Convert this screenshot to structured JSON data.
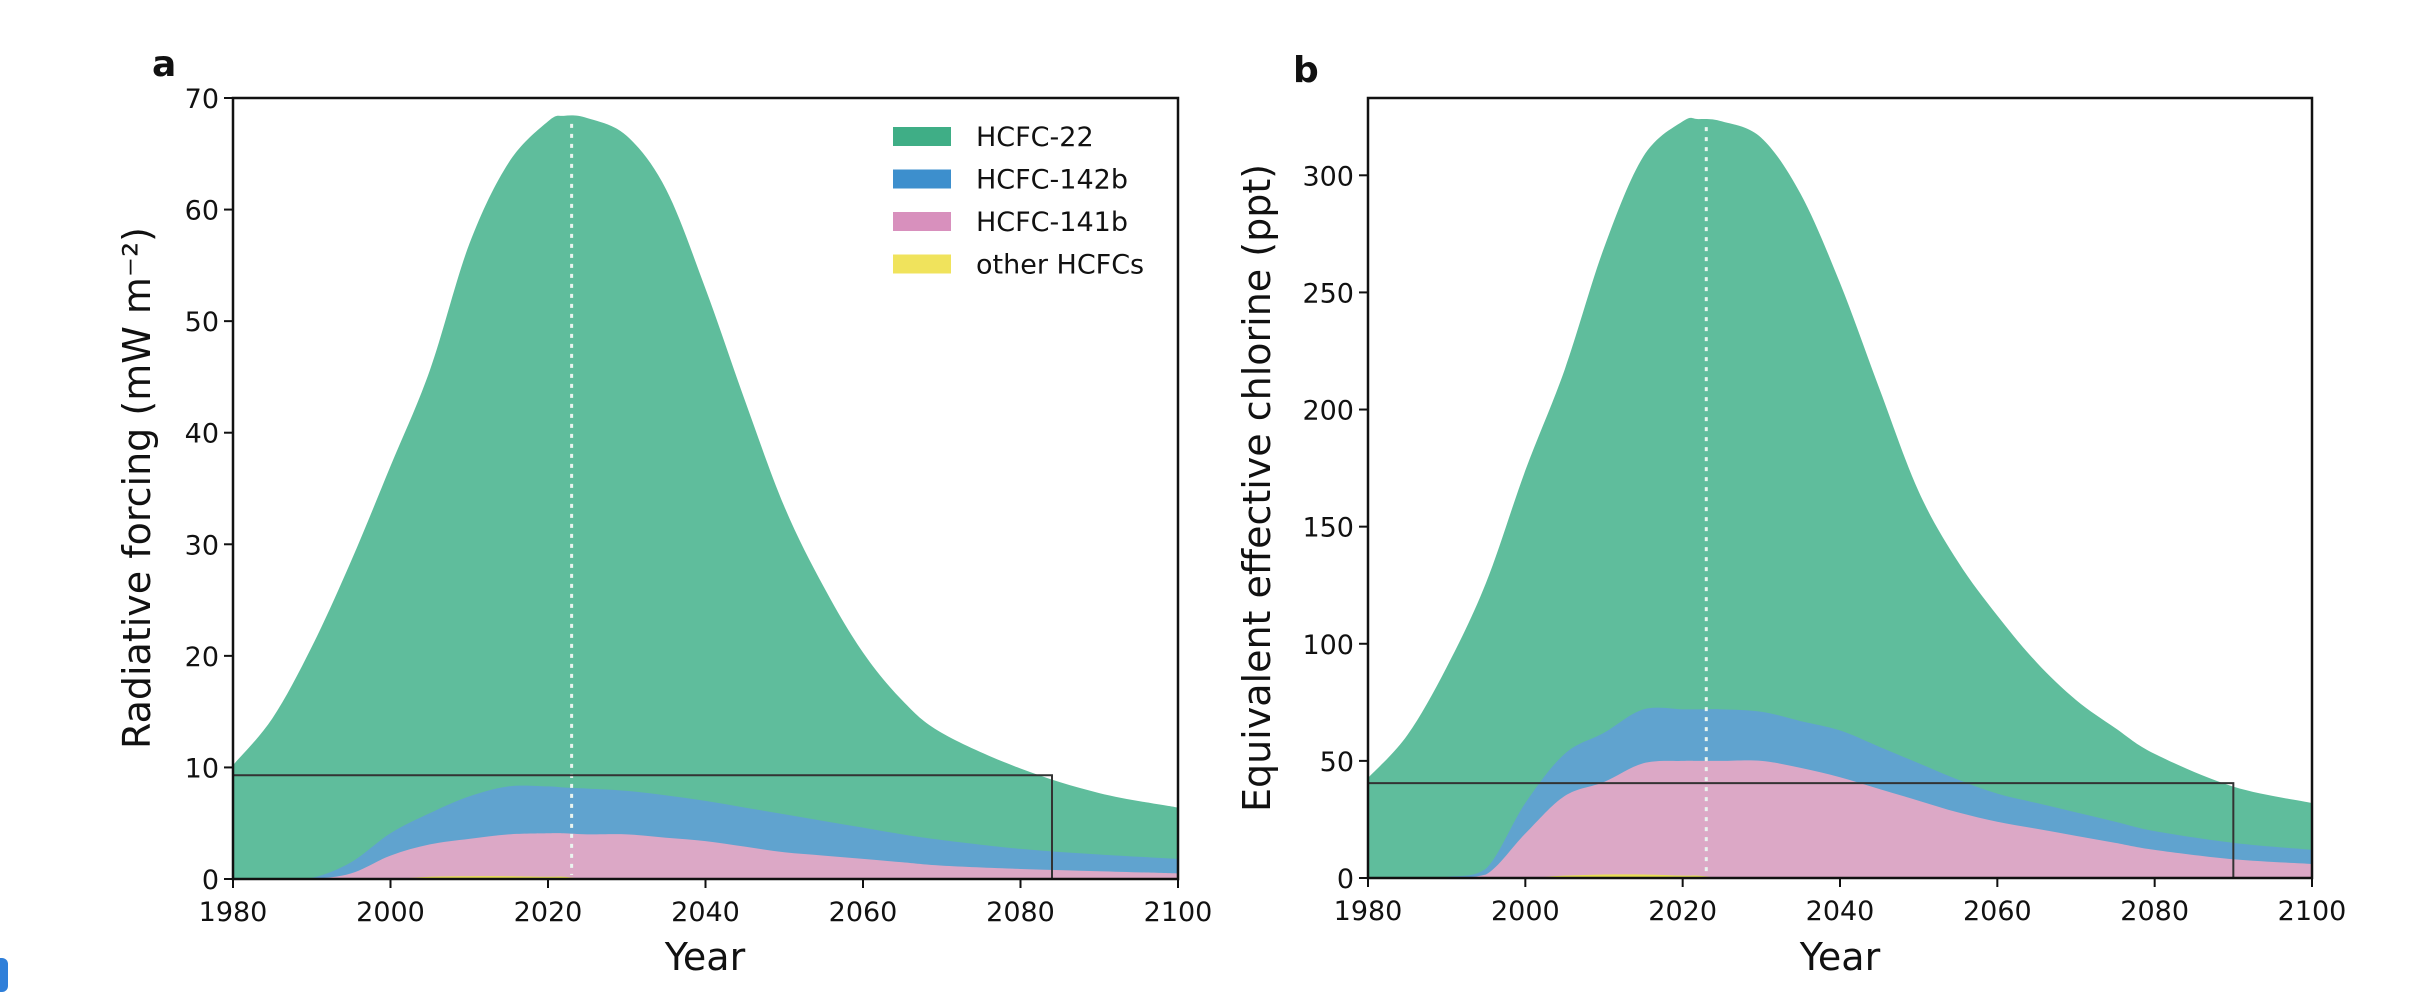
{
  "chart_data": [
    {
      "panel": "a",
      "type": "area",
      "stacked": true,
      "title": "",
      "xlabel": "Year",
      "ylabel": "Radiative forcing (mW m⁻²)",
      "xlim": [
        1980,
        2100
      ],
      "ylim": [
        0,
        70
      ],
      "xticks": [
        1980,
        2000,
        2020,
        2040,
        2060,
        2080,
        2100
      ],
      "yticks": [
        0,
        10,
        20,
        30,
        40,
        50,
        60,
        70
      ],
      "grid": false,
      "legend_position": "top-right",
      "vline_year": 2023,
      "inset_box": {
        "x0": 1980,
        "x1": 2084,
        "y0": 0,
        "y1": 9.3
      },
      "x": [
        1980,
        1985,
        1990,
        1995,
        2000,
        2005,
        2010,
        2015,
        2020,
        2022,
        2025,
        2030,
        2035,
        2040,
        2045,
        2050,
        2055,
        2060,
        2065,
        2070,
        2080,
        2090,
        2100
      ],
      "cumulative_top": {
        "HCFC-22": [
          10.2,
          14.4,
          20.8,
          28.5,
          37.0,
          45.6,
          56.9,
          64.2,
          67.9,
          68.4,
          68.2,
          66.6,
          61.8,
          52.9,
          42.9,
          33.4,
          26.2,
          20.3,
          16.0,
          13.1,
          9.9,
          7.7,
          6.4
        ],
        "HCFC-142b": [
          0.0,
          0.0,
          0.1,
          1.5,
          4.1,
          5.9,
          7.4,
          8.3,
          8.3,
          8.2,
          8.1,
          7.9,
          7.5,
          7.0,
          6.4,
          5.8,
          5.2,
          4.6,
          4.0,
          3.5,
          2.7,
          2.2,
          1.8
        ],
        "HCFC-141b": [
          0.0,
          0.0,
          0.0,
          0.5,
          2.1,
          3.1,
          3.6,
          4.0,
          4.1,
          4.1,
          4.0,
          4.0,
          3.7,
          3.4,
          2.9,
          2.4,
          2.1,
          1.8,
          1.5,
          1.2,
          0.9,
          0.7,
          0.5
        ],
        "other HCFCs": [
          0.0,
          0.0,
          0.0,
          0.0,
          0.0,
          0.2,
          0.25,
          0.25,
          0.2,
          0.2,
          0.0,
          0.0,
          0.0,
          0.0,
          0.0,
          0.0,
          0.0,
          0.0,
          0.0,
          0.0,
          0.0,
          0.0,
          0.0
        ]
      }
    },
    {
      "panel": "b",
      "type": "area",
      "stacked": true,
      "title": "",
      "xlabel": "Year",
      "ylabel": "Equivalent effective chlorine (ppt)",
      "xlim": [
        1980,
        2100
      ],
      "ylim": [
        0,
        333
      ],
      "xticks": [
        1980,
        2000,
        2020,
        2040,
        2060,
        2080,
        2100
      ],
      "yticks": [
        0,
        50,
        100,
        150,
        200,
        250,
        300
      ],
      "grid": false,
      "vline_year": 2023,
      "inset_box": {
        "x0": 1980,
        "x1": 2090,
        "y0": 0,
        "y1": 40.5
      },
      "x": [
        1980,
        1985,
        1990,
        1995,
        2000,
        2005,
        2010,
        2015,
        2020,
        2022,
        2025,
        2030,
        2035,
        2040,
        2045,
        2050,
        2055,
        2060,
        2065,
        2070,
        2075,
        2080,
        2090,
        2100
      ],
      "cumulative_top": {
        "HCFC-22": [
          42.7,
          61,
          90,
          126,
          174,
          217,
          269,
          308,
          323,
          324,
          323,
          316,
          292,
          254,
          209,
          165,
          135,
          112,
          92,
          76,
          64,
          53,
          39,
          32
        ],
        "HCFC-142b": [
          0,
          0,
          0.5,
          4,
          32,
          53,
          62,
          72,
          72,
          72,
          72,
          71,
          67,
          63,
          56,
          49,
          42,
          36,
          32,
          28,
          24,
          20,
          15,
          12
        ],
        "HCFC-141b": [
          0,
          0,
          0,
          1.5,
          19,
          35,
          41,
          49,
          50,
          50,
          50,
          50,
          47,
          43,
          38,
          33,
          28,
          24,
          21,
          18,
          15,
          12,
          8,
          6
        ],
        "other HCFCs": [
          0,
          0,
          0,
          0,
          0,
          1,
          1.5,
          1.5,
          1,
          1,
          0,
          0,
          0,
          0,
          0,
          0,
          0,
          0,
          0,
          0,
          0,
          0,
          0,
          0
        ]
      }
    }
  ],
  "legend": {
    "entries": [
      {
        "label": "HCFC-22",
        "color": "#3fae86"
      },
      {
        "label": "HCFC-142b",
        "color": "#3d8fcd"
      },
      {
        "label": "HCFC-141b",
        "color": "#d890bd"
      },
      {
        "label": "other HCFCs",
        "color": "#f0e35c"
      }
    ]
  },
  "fill_colors": {
    "HCFC-22": "#5fbd9c",
    "HCFC-142b": "#60a3cf",
    "HCFC-141b": "#dca8c6",
    "other HCFCs": "#e8df55"
  },
  "panel_labels": [
    "a",
    "b"
  ]
}
